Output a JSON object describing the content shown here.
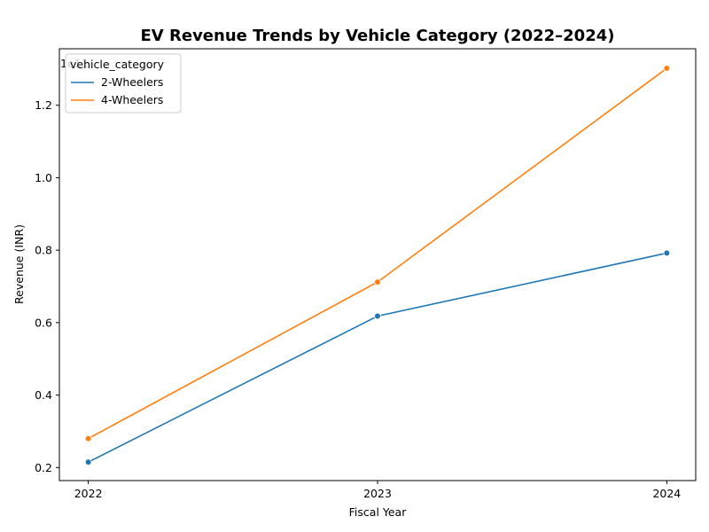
{
  "chart_data": {
    "type": "line",
    "title": "EV Revenue Trends by Vehicle Category (2022–2024)",
    "xlabel": "Fiscal Year",
    "ylabel": "Revenue (INR)",
    "y_offset_label": "1e11",
    "y_scale": 100000000000,
    "x": [
      2022,
      2023,
      2024
    ],
    "x_tick_labels": [
      "2022",
      "2023",
      "2024"
    ],
    "y_ticks": [
      0.2,
      0.4,
      0.6,
      0.8,
      1.0,
      1.2
    ],
    "y_tick_labels": [
      "0.2",
      "0.4",
      "0.6",
      "0.8",
      "1.0",
      "1.2"
    ],
    "xlim": [
      2021.9,
      2024.1
    ],
    "ylim": [
      0.164,
      1.356
    ],
    "grid": false,
    "legend": {
      "title": "vehicle_category",
      "placement": "top-left"
    },
    "series": [
      {
        "name": "2-Wheelers",
        "color": "#1f77b4",
        "values": [
          0.215,
          0.618,
          0.792
        ]
      },
      {
        "name": "4-Wheelers",
        "color": "#ff7f0e",
        "values": [
          0.28,
          0.712,
          1.302
        ]
      }
    ]
  }
}
